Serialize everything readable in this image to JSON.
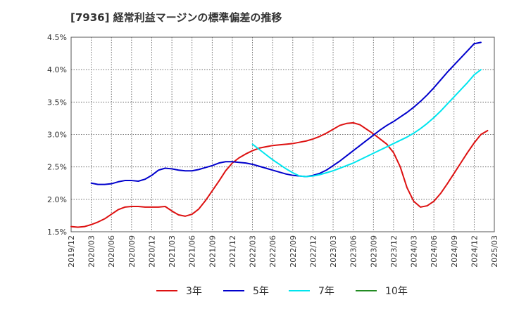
{
  "chart_data": {
    "type": "line",
    "title": "[7936]  経常利益マージンの標準偏差の推移",
    "xlabel": "",
    "ylabel": "",
    "ylim": [
      1.5,
      4.5
    ],
    "yticks": [
      {
        "value": 1.5,
        "label": "1.5%"
      },
      {
        "value": 2.0,
        "label": "2.0%"
      },
      {
        "value": 2.5,
        "label": "2.5%"
      },
      {
        "value": 3.0,
        "label": "3.0%"
      },
      {
        "value": 3.5,
        "label": "3.5%"
      },
      {
        "value": 4.0,
        "label": "4.0%"
      },
      {
        "value": 4.5,
        "label": "4.5%"
      }
    ],
    "xticks": [
      "2019/12",
      "2020/03",
      "2020/06",
      "2020/09",
      "2020/12",
      "2021/03",
      "2021/06",
      "2021/09",
      "2021/12",
      "2022/03",
      "2022/06",
      "2022/09",
      "2022/12",
      "2023/03",
      "2023/06",
      "2023/09",
      "2023/12",
      "2024/03",
      "2024/06",
      "2024/09",
      "2024/12",
      "2025/03"
    ],
    "grid": true,
    "legend_position": "bottom",
    "series": [
      {
        "name": "3年",
        "color": "#dd1111",
        "points": [
          [
            "2019/12",
            1.58
          ],
          [
            "2020/01",
            1.57
          ],
          [
            "2020/02",
            1.58
          ],
          [
            "2020/03",
            1.61
          ],
          [
            "2020/04",
            1.65
          ],
          [
            "2020/05",
            1.7
          ],
          [
            "2020/06",
            1.77
          ],
          [
            "2020/07",
            1.84
          ],
          [
            "2020/08",
            1.88
          ],
          [
            "2020/09",
            1.89
          ],
          [
            "2020/10",
            1.89
          ],
          [
            "2020/11",
            1.88
          ],
          [
            "2020/12",
            1.88
          ],
          [
            "2021/01",
            1.88
          ],
          [
            "2021/02",
            1.89
          ],
          [
            "2021/03",
            1.82
          ],
          [
            "2021/04",
            1.76
          ],
          [
            "2021/05",
            1.74
          ],
          [
            "2021/06",
            1.77
          ],
          [
            "2021/07",
            1.85
          ],
          [
            "2021/08",
            1.98
          ],
          [
            "2021/09",
            2.13
          ],
          [
            "2021/10",
            2.28
          ],
          [
            "2021/11",
            2.44
          ],
          [
            "2021/12",
            2.56
          ],
          [
            "2022/01",
            2.64
          ],
          [
            "2022/02",
            2.7
          ],
          [
            "2022/03",
            2.75
          ],
          [
            "2022/04",
            2.79
          ],
          [
            "2022/05",
            2.81
          ],
          [
            "2022/06",
            2.83
          ],
          [
            "2022/07",
            2.84
          ],
          [
            "2022/08",
            2.85
          ],
          [
            "2022/09",
            2.86
          ],
          [
            "2022/10",
            2.88
          ],
          [
            "2022/11",
            2.9
          ],
          [
            "2022/12",
            2.93
          ],
          [
            "2023/01",
            2.97
          ],
          [
            "2023/02",
            3.02
          ],
          [
            "2023/03",
            3.08
          ],
          [
            "2023/04",
            3.14
          ],
          [
            "2023/05",
            3.17
          ],
          [
            "2023/06",
            3.18
          ],
          [
            "2023/07",
            3.15
          ],
          [
            "2023/08",
            3.08
          ],
          [
            "2023/09",
            3.01
          ],
          [
            "2023/10",
            2.93
          ],
          [
            "2023/11",
            2.85
          ],
          [
            "2023/12",
            2.72
          ],
          [
            "2024/01",
            2.5
          ],
          [
            "2024/02",
            2.18
          ],
          [
            "2024/03",
            1.97
          ],
          [
            "2024/04",
            1.88
          ],
          [
            "2024/05",
            1.9
          ],
          [
            "2024/06",
            1.97
          ],
          [
            "2024/07",
            2.09
          ],
          [
            "2024/08",
            2.24
          ],
          [
            "2024/09",
            2.4
          ],
          [
            "2024/10",
            2.56
          ],
          [
            "2024/11",
            2.72
          ],
          [
            "2024/12",
            2.87
          ],
          [
            "2025/01",
            3.0
          ],
          [
            "2025/02",
            3.06
          ]
        ]
      },
      {
        "name": "5年",
        "color": "#0000cc",
        "points": [
          [
            "2020/03",
            2.25
          ],
          [
            "2020/04",
            2.23
          ],
          [
            "2020/05",
            2.23
          ],
          [
            "2020/06",
            2.24
          ],
          [
            "2020/07",
            2.27
          ],
          [
            "2020/08",
            2.29
          ],
          [
            "2020/09",
            2.29
          ],
          [
            "2020/10",
            2.28
          ],
          [
            "2020/11",
            2.31
          ],
          [
            "2020/12",
            2.37
          ],
          [
            "2021/01",
            2.45
          ],
          [
            "2021/02",
            2.48
          ],
          [
            "2021/03",
            2.47
          ],
          [
            "2021/04",
            2.45
          ],
          [
            "2021/05",
            2.44
          ],
          [
            "2021/06",
            2.44
          ],
          [
            "2021/07",
            2.46
          ],
          [
            "2021/08",
            2.49
          ],
          [
            "2021/09",
            2.52
          ],
          [
            "2021/10",
            2.56
          ],
          [
            "2021/11",
            2.58
          ],
          [
            "2021/12",
            2.58
          ],
          [
            "2022/01",
            2.57
          ],
          [
            "2022/02",
            2.56
          ],
          [
            "2022/03",
            2.54
          ],
          [
            "2022/04",
            2.51
          ],
          [
            "2022/05",
            2.48
          ],
          [
            "2022/06",
            2.45
          ],
          [
            "2022/07",
            2.42
          ],
          [
            "2022/08",
            2.39
          ],
          [
            "2022/09",
            2.37
          ],
          [
            "2022/10",
            2.36
          ],
          [
            "2022/11",
            2.35
          ],
          [
            "2022/12",
            2.37
          ],
          [
            "2023/01",
            2.4
          ],
          [
            "2023/02",
            2.45
          ],
          [
            "2023/03",
            2.52
          ],
          [
            "2023/04",
            2.59
          ],
          [
            "2023/05",
            2.67
          ],
          [
            "2023/06",
            2.75
          ],
          [
            "2023/07",
            2.83
          ],
          [
            "2023/08",
            2.91
          ],
          [
            "2023/09",
            2.99
          ],
          [
            "2023/10",
            3.07
          ],
          [
            "2023/11",
            3.14
          ],
          [
            "2023/12",
            3.2
          ],
          [
            "2024/01",
            3.27
          ],
          [
            "2024/02",
            3.34
          ],
          [
            "2024/03",
            3.42
          ],
          [
            "2024/04",
            3.51
          ],
          [
            "2024/05",
            3.61
          ],
          [
            "2024/06",
            3.72
          ],
          [
            "2024/07",
            3.84
          ],
          [
            "2024/08",
            3.96
          ],
          [
            "2024/09",
            4.07
          ],
          [
            "2024/10",
            4.18
          ],
          [
            "2024/11",
            4.29
          ],
          [
            "2024/12",
            4.4
          ],
          [
            "2025/01",
            4.42
          ]
        ]
      },
      {
        "name": "7年",
        "color": "#00e5ee",
        "points": [
          [
            "2022/03",
            2.85
          ],
          [
            "2022/04",
            2.77
          ],
          [
            "2022/05",
            2.69
          ],
          [
            "2022/06",
            2.61
          ],
          [
            "2022/07",
            2.54
          ],
          [
            "2022/08",
            2.47
          ],
          [
            "2022/09",
            2.41
          ],
          [
            "2022/10",
            2.36
          ],
          [
            "2022/11",
            2.35
          ],
          [
            "2022/12",
            2.36
          ],
          [
            "2023/01",
            2.38
          ],
          [
            "2023/02",
            2.41
          ],
          [
            "2023/03",
            2.44
          ],
          [
            "2023/04",
            2.48
          ],
          [
            "2023/05",
            2.52
          ],
          [
            "2023/06",
            2.56
          ],
          [
            "2023/07",
            2.61
          ],
          [
            "2023/08",
            2.66
          ],
          [
            "2023/09",
            2.71
          ],
          [
            "2023/10",
            2.76
          ],
          [
            "2023/11",
            2.81
          ],
          [
            "2023/12",
            2.86
          ],
          [
            "2024/01",
            2.91
          ],
          [
            "2024/02",
            2.96
          ],
          [
            "2024/03",
            3.02
          ],
          [
            "2024/04",
            3.09
          ],
          [
            "2024/05",
            3.17
          ],
          [
            "2024/06",
            3.26
          ],
          [
            "2024/07",
            3.36
          ],
          [
            "2024/08",
            3.47
          ],
          [
            "2024/09",
            3.58
          ],
          [
            "2024/10",
            3.69
          ],
          [
            "2024/11",
            3.8
          ],
          [
            "2024/12",
            3.92
          ],
          [
            "2025/01",
            4.0
          ]
        ]
      },
      {
        "name": "10年",
        "color": "#228b22",
        "points": []
      }
    ]
  }
}
